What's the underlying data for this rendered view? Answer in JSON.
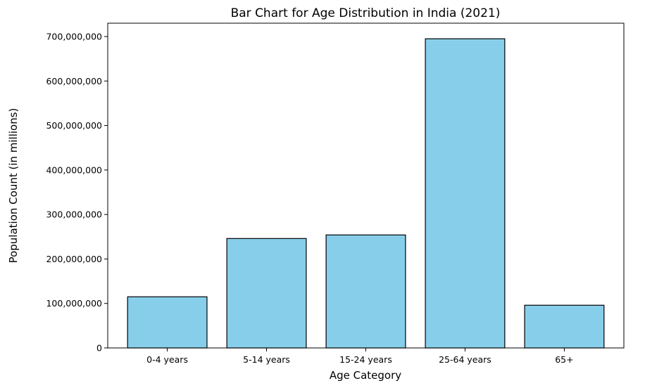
{
  "chart_data": {
    "type": "bar",
    "title": "Bar Chart for Age Distribution in India (2021)",
    "xlabel": "Age Category",
    "ylabel": "Population Count (in millions)",
    "categories": [
      "0-4 years",
      "5-14 years",
      "15-24 years",
      "25-64 years",
      "65+"
    ],
    "values": [
      115000000,
      246000000,
      254000000,
      695000000,
      96000000
    ],
    "ylim": [
      0,
      730000000
    ],
    "yticks": [
      0,
      100000000,
      200000000,
      300000000,
      400000000,
      500000000,
      600000000,
      700000000
    ],
    "ytick_labels": [
      "0",
      "100,000,000",
      "200,000,000",
      "300,000,000",
      "400,000,000",
      "500,000,000",
      "600,000,000",
      "700,000,000"
    ],
    "bar_color": "#87CEEB",
    "edge_color": "#000000",
    "grid": false,
    "legend": "none"
  }
}
